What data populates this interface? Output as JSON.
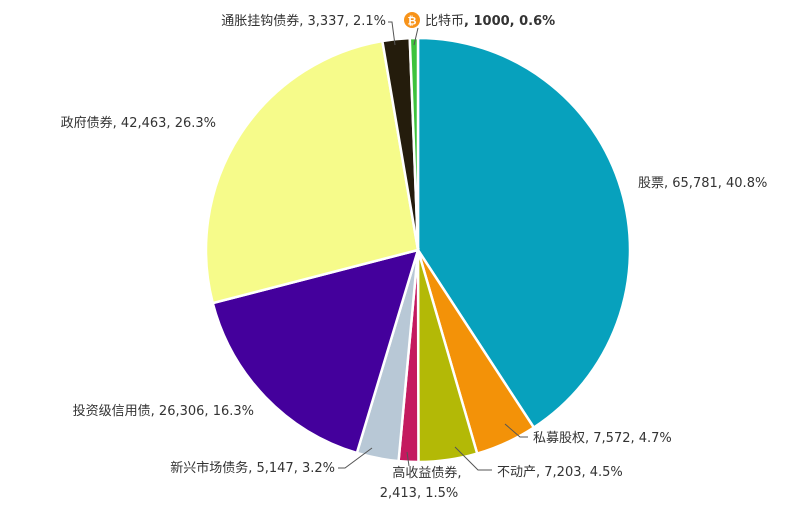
{
  "chart_data": {
    "type": "pie",
    "unit_note": "",
    "slices": [
      {
        "name": "股票",
        "value": 65781,
        "percent": "40.8%",
        "value_text": "65,781",
        "color": "#07a1bd"
      },
      {
        "name": "私募股权",
        "value": 7572,
        "percent": "4.7%",
        "value_text": "7,572",
        "color": "#f39208"
      },
      {
        "name": "不动产",
        "value": 7203,
        "percent": "4.5%",
        "value_text": "7,203",
        "color": "#b3b906"
      },
      {
        "name": "高收益债券",
        "value": 2413,
        "percent": "1.5%",
        "value_text": "2,413",
        "color": "#c41a5f"
      },
      {
        "name": "新兴市场债务",
        "value": 5147,
        "percent": "3.2%",
        "value_text": "5,147",
        "color": "#b8c8d6"
      },
      {
        "name": "投资级信用债",
        "value": 26306,
        "percent": "16.3%",
        "value_text": "26,306",
        "color": "#44009c"
      },
      {
        "name": "政府债券",
        "value": 42463,
        "percent": "26.3%",
        "value_text": "42,463",
        "color": "#f6fb8a"
      },
      {
        "name": "通胀挂钩债券",
        "value": 3337,
        "percent": "2.1%",
        "value_text": "3,337",
        "color": "#241c0c"
      },
      {
        "name": "比特币",
        "value": 1000,
        "percent": "0.6%",
        "value_text": "1000",
        "color": "#3dc33d",
        "bold": true,
        "icon": "bitcoin-icon"
      }
    ]
  },
  "labels": {
    "stocks": "股票, 65,781, 40.8%",
    "private_equity": "私募股权, 7,572, 4.7%",
    "real_estate": "不动产, 7,203, 4.5%",
    "high_yield_line1": "高收益债券,",
    "high_yield_line2": "2,413, 1.5%",
    "em_debt": "新兴市场债务, 5,147, 3.2%",
    "ig_credit": "投资级信用债, 26,306, 16.3%",
    "gov_bonds": "政府债券, 42,463, 26.3%",
    "inflation_linked": "通胀挂钩债券, 3,337, 2.1%",
    "bitcoin_name": "比特币",
    "bitcoin_rest": ", 1000, 0.6%",
    "bitcoin_symbol": "₿"
  },
  "colors": {
    "bitcoin_icon": "#f7931a"
  }
}
